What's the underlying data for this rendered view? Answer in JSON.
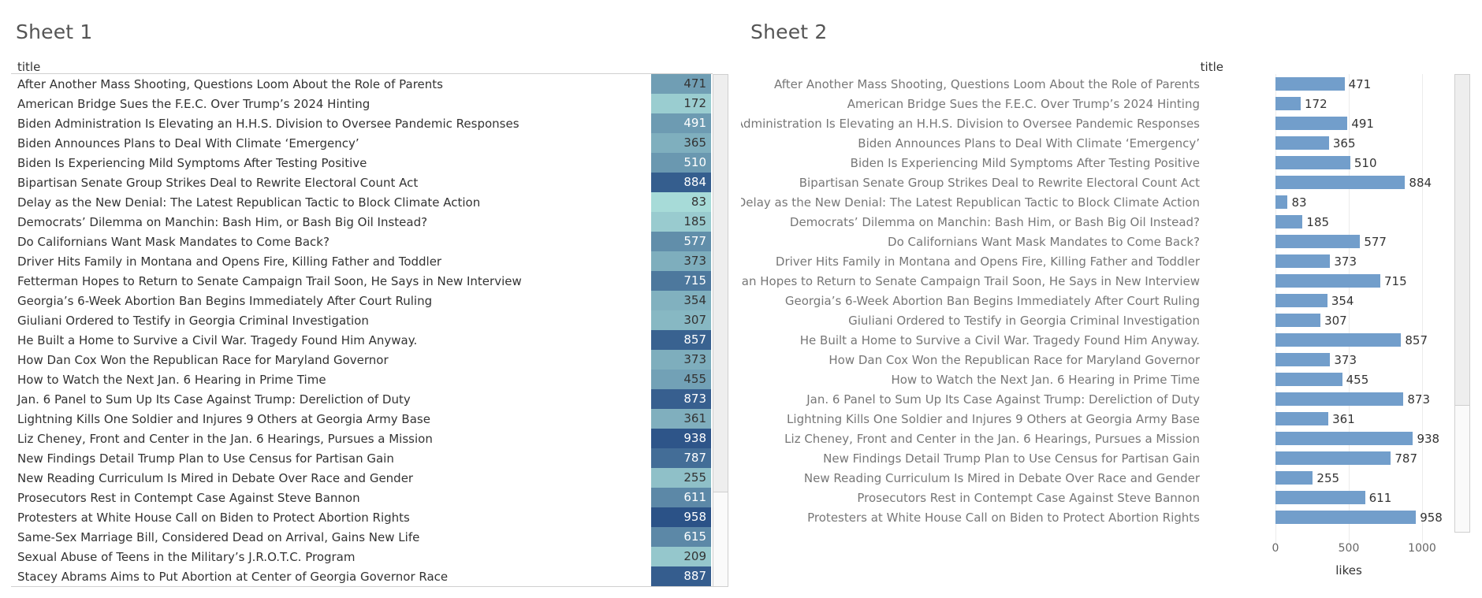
{
  "sheet1": {
    "title": "Sheet 1",
    "header": "title"
  },
  "sheet2": {
    "title": "Sheet 2",
    "header": "title"
  },
  "colors": {
    "bar": "#729ecb",
    "heat_low": "#a7dbd8",
    "heat_high": "#2b5287"
  },
  "chart_data": [
    {
      "type": "table",
      "title": "Sheet 1",
      "columns": [
        "title",
        "likes"
      ],
      "rows": [
        {
          "title": "After Another Mass Shooting, Questions Loom About the Role of Parents",
          "likes": 471
        },
        {
          "title": "American Bridge Sues the F.E.C. Over Trump’s 2024 Hinting",
          "likes": 172
        },
        {
          "title": "Biden Administration Is Elevating an H.H.S. Division to Oversee Pandemic Responses",
          "likes": 491
        },
        {
          "title": "Biden Announces Plans to Deal With Climate ‘Emergency’",
          "likes": 365
        },
        {
          "title": "Biden Is Experiencing Mild Symptoms After Testing Positive",
          "likes": 510
        },
        {
          "title": "Bipartisan Senate Group Strikes Deal to Rewrite Electoral Count Act",
          "likes": 884
        },
        {
          "title": "Delay as the New Denial: The Latest Republican Tactic to Block Climate Action",
          "likes": 83
        },
        {
          "title": "Democrats’ Dilemma on Manchin: Bash Him, or Bash Big Oil Instead?",
          "likes": 185
        },
        {
          "title": "Do Californians Want Mask Mandates to Come Back?",
          "likes": 577
        },
        {
          "title": "Driver Hits Family in Montana and Opens Fire, Killing Father and Toddler",
          "likes": 373
        },
        {
          "title": "Fetterman Hopes to Return to Senate Campaign Trail Soon, He Says in New Interview",
          "likes": 715
        },
        {
          "title": "Georgia’s 6-Week Abortion Ban Begins Immediately After Court Ruling",
          "likes": 354
        },
        {
          "title": "Giuliani Ordered to Testify in Georgia Criminal Investigation",
          "likes": 307
        },
        {
          "title": "He Built a Home to Survive a Civil War. Tragedy Found Him Anyway.",
          "likes": 857
        },
        {
          "title": "How Dan Cox Won the Republican Race for Maryland Governor",
          "likes": 373
        },
        {
          "title": "How to Watch the Next Jan. 6 Hearing in Prime Time",
          "likes": 455
        },
        {
          "title": "Jan. 6 Panel to Sum Up Its Case Against Trump: Dereliction of Duty",
          "likes": 873
        },
        {
          "title": "Lightning Kills One Soldier and Injures 9 Others at Georgia Army Base",
          "likes": 361
        },
        {
          "title": "Liz Cheney, Front and Center in the Jan. 6 Hearings, Pursues a Mission",
          "likes": 938
        },
        {
          "title": "New Findings Detail Trump Plan to Use Census for Partisan Gain",
          "likes": 787
        },
        {
          "title": "New Reading Curriculum Is Mired in Debate Over Race and Gender",
          "likes": 255
        },
        {
          "title": "Prosecutors Rest in Contempt Case Against Steve Bannon",
          "likes": 611
        },
        {
          "title": "Protesters at White House Call on Biden to Protect Abortion Rights",
          "likes": 958
        },
        {
          "title": "Same-Sex Marriage Bill, Considered Dead on Arrival, Gains New Life",
          "likes": 615
        },
        {
          "title": "Sexual Abuse of Teens in the Military’s J.R.O.T.C. Program",
          "likes": 209
        },
        {
          "title": "Stacey Abrams Aims to Put Abortion at Center of Georgia Governor Race",
          "likes": 887
        }
      ]
    },
    {
      "type": "bar",
      "orientation": "horizontal",
      "title": "Sheet 2",
      "ylabel": "title",
      "xlabel": "likes",
      "xlim": [
        0,
        1000
      ],
      "xticks": [
        0,
        500,
        1000
      ],
      "grid": true,
      "categories": [
        "After Another Mass Shooting, Questions Loom About the Role of Parents",
        "American Bridge Sues the F.E.C. Over Trump’s 2024 Hinting",
        "Biden Administration Is Elevating an H.H.S. Division to Oversee Pandemic Responses",
        "Biden Announces Plans to Deal With Climate ‘Emergency’",
        "Biden Is Experiencing Mild Symptoms After Testing Positive",
        "Bipartisan Senate Group Strikes Deal to Rewrite Electoral Count Act",
        "Delay as the New Denial: The Latest Republican Tactic to Block Climate Action",
        "Democrats’ Dilemma on Manchin: Bash Him, or Bash Big Oil Instead?",
        "Do Californians Want Mask Mandates to Come Back?",
        "Driver Hits Family in Montana and Opens Fire, Killing Father and Toddler",
        "Fetterman Hopes to Return to Senate Campaign Trail Soon, He Says in New Interview",
        "Georgia’s 6-Week Abortion Ban Begins Immediately After Court Ruling",
        "Giuliani Ordered to Testify in Georgia Criminal Investigation",
        "He Built a Home to Survive a Civil War. Tragedy Found Him Anyway.",
        "How Dan Cox Won the Republican Race for Maryland Governor",
        "How to Watch the Next Jan. 6 Hearing in Prime Time",
        "Jan. 6 Panel to Sum Up Its Case Against Trump: Dereliction of Duty",
        "Lightning Kills One Soldier and Injures 9 Others at Georgia Army Base",
        "Liz Cheney, Front and Center in the Jan. 6 Hearings, Pursues a Mission",
        "New Findings Detail Trump Plan to Use Census for Partisan Gain",
        "New Reading Curriculum Is Mired in Debate Over Race and Gender",
        "Prosecutors Rest in Contempt Case Against Steve Bannon",
        "Protesters at White House Call on Biden to Protect Abortion Rights"
      ],
      "values": [
        471,
        172,
        491,
        365,
        510,
        884,
        83,
        185,
        577,
        373,
        715,
        354,
        307,
        857,
        373,
        455,
        873,
        361,
        938,
        787,
        255,
        611,
        958
      ]
    }
  ]
}
